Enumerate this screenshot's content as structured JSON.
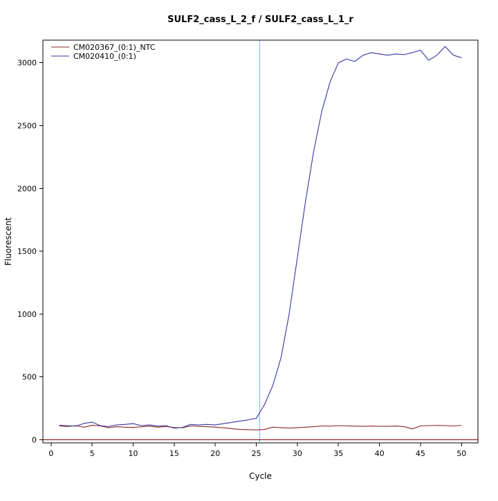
{
  "page": {
    "background": "#FFFFFF"
  },
  "chart_data": {
    "type": "line",
    "title": "SULF2_cass_L_2_f / SULF2_cass_L_1_r",
    "xlabel": "Cycle",
    "ylabel": "Fluorescent",
    "xlim": [
      -1,
      52
    ],
    "ylim": [
      -25,
      3180
    ],
    "x_ticks": [
      0,
      5,
      10,
      15,
      20,
      25,
      30,
      35,
      40,
      45,
      50
    ],
    "y_ticks": [
      0,
      500,
      1000,
      1500,
      2000,
      2500,
      3000
    ],
    "grid": false,
    "legend_position": "top-left",
    "x": [
      1,
      2,
      3,
      4,
      5,
      6,
      7,
      8,
      9,
      10,
      11,
      12,
      13,
      14,
      15,
      16,
      17,
      18,
      19,
      20,
      21,
      22,
      23,
      24,
      25,
      26,
      27,
      28,
      29,
      30,
      31,
      32,
      33,
      34,
      35,
      36,
      37,
      38,
      39,
      40,
      41,
      42,
      43,
      44,
      45,
      46,
      47,
      48,
      49,
      50
    ],
    "series": [
      {
        "name": "CM020367_(0:1)_NTC",
        "color": "#8B2525",
        "values": [
          110,
          105,
          112,
          100,
          115,
          110,
          96,
          104,
          100,
          98,
          103,
          108,
          100,
          105,
          97,
          95,
          110,
          106,
          104,
          100,
          95,
          88,
          82,
          80,
          78,
          82,
          100,
          96,
          93,
          96,
          100,
          104,
          110,
          108,
          112,
          110,
          108,
          107,
          109,
          107,
          107,
          109,
          104,
          86,
          110,
          112,
          114,
          112,
          110,
          114
        ]
      },
      {
        "name": "CM020410_(0:1)",
        "color": "#3434A4",
        "values": [
          115,
          112,
          108,
          130,
          140,
          112,
          105,
          118,
          122,
          128,
          112,
          118,
          108,
          112,
          92,
          98,
          122,
          118,
          122,
          118,
          128,
          138,
          148,
          158,
          170,
          280,
          430,
          650,
          1000,
          1450,
          1900,
          2300,
          2620,
          2850,
          3000,
          3030,
          3010,
          3060,
          3080,
          3070,
          3060,
          3070,
          3065,
          3080,
          3100,
          3020,
          3060,
          3130,
          3060,
          3040
        ]
      }
    ],
    "reference_lines": [
      {
        "name": "threshold-cycle-line",
        "orientation": "vertical",
        "value": 25.4,
        "color": "#00EEEE"
      },
      {
        "name": "baseline-line",
        "orientation": "horizontal",
        "value": 0,
        "color": "#8B0000"
      }
    ]
  }
}
